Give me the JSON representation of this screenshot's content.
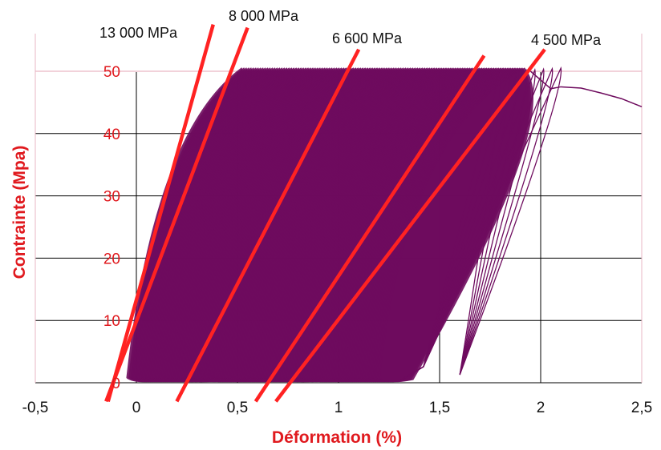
{
  "chart_data": {
    "type": "line",
    "title": "",
    "xlabel": "Déformation (%)",
    "ylabel": "Contrainte (Mpa)",
    "xlim": [
      -0.5,
      2.5
    ],
    "ylim": [
      0,
      50
    ],
    "x_ticks": [
      "-0,5",
      "0",
      "0,5",
      "1",
      "1,5",
      "2",
      "2,5"
    ],
    "y_ticks": [
      "0",
      "10",
      "20",
      "30",
      "40",
      "50"
    ],
    "grid": true,
    "colors": {
      "cycles": "#6e0b5e",
      "modulus_lines": "#ff2222",
      "y_labels": "#e0191e",
      "axis_title": "#e0191e",
      "gridline": "#000000"
    },
    "cyclic_loading": {
      "peak_stress": 50.5,
      "first_cycle_strain": 0.0,
      "last_dense_cycle_strain": 1.25,
      "last_cycle_strain": 1.95
    },
    "envelope": [
      {
        "x": 1.95,
        "y": 50.0
      },
      {
        "x": 2.05,
        "y": 47.2
      },
      {
        "x": 2.1,
        "y": 47.5
      },
      {
        "x": 2.2,
        "y": 47.3
      },
      {
        "x": 2.3,
        "y": 46.5
      },
      {
        "x": 2.4,
        "y": 45.6
      },
      {
        "x": 2.5,
        "y": 44.3
      }
    ],
    "series": [
      {
        "name": "13 000 MPa",
        "x": [
          -0.14,
          0.38
        ],
        "y": [
          -3,
          57.5
        ]
      },
      {
        "name": "8 000 MPa",
        "x": [
          -0.15,
          0.55
        ],
        "y": [
          -3,
          57
        ]
      },
      {
        "name": "6 600 MPa",
        "x": [
          0.2,
          1.1
        ],
        "y": [
          -3,
          53.5
        ]
      },
      {
        "name": "4 500 MPa",
        "x": [
          0.59,
          1.72
        ],
        "y": [
          -3,
          52.5
        ]
      },
      {
        "name": "",
        "x": [
          0.69,
          2.02
        ],
        "y": [
          -3,
          53.5
        ]
      }
    ]
  }
}
